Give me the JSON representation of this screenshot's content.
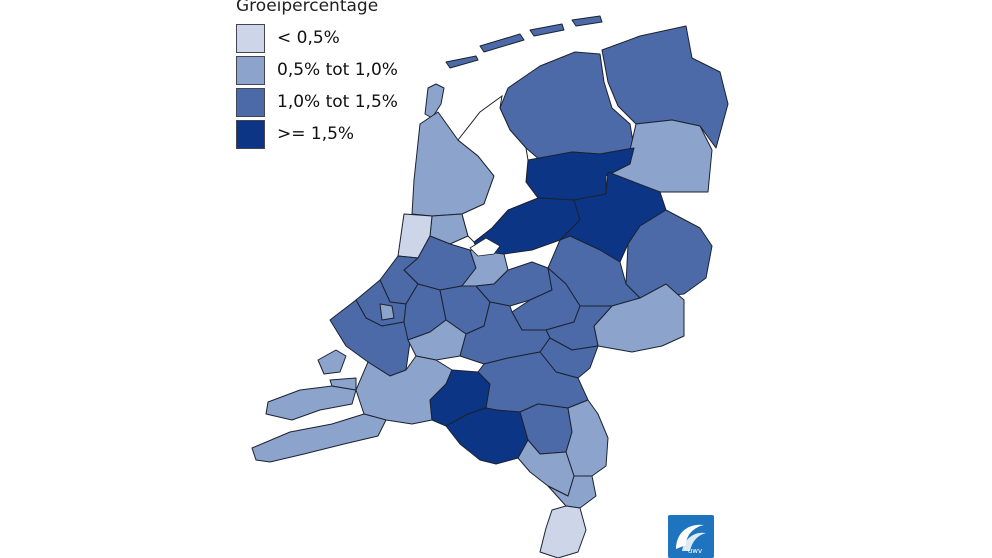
{
  "legend": {
    "title": "Groeipercentage",
    "items": [
      {
        "label": "< 0,5%",
        "color": "#ccd6e8"
      },
      {
        "label": "0,5% tot 1,0%",
        "color": "#8ca3cc"
      },
      {
        "label": "1,0% tot 1,5%",
        "color": "#4c6aa8"
      },
      {
        "label": ">= 1,5%",
        "color": "#0c3585"
      }
    ]
  },
  "colors": {
    "background": "#ffffff",
    "border": "#1c2230",
    "water": "#ffffff"
  },
  "logo": {
    "text": "UWV",
    "icon": "uwv-logo-icon",
    "color": "#1f74c0"
  }
}
